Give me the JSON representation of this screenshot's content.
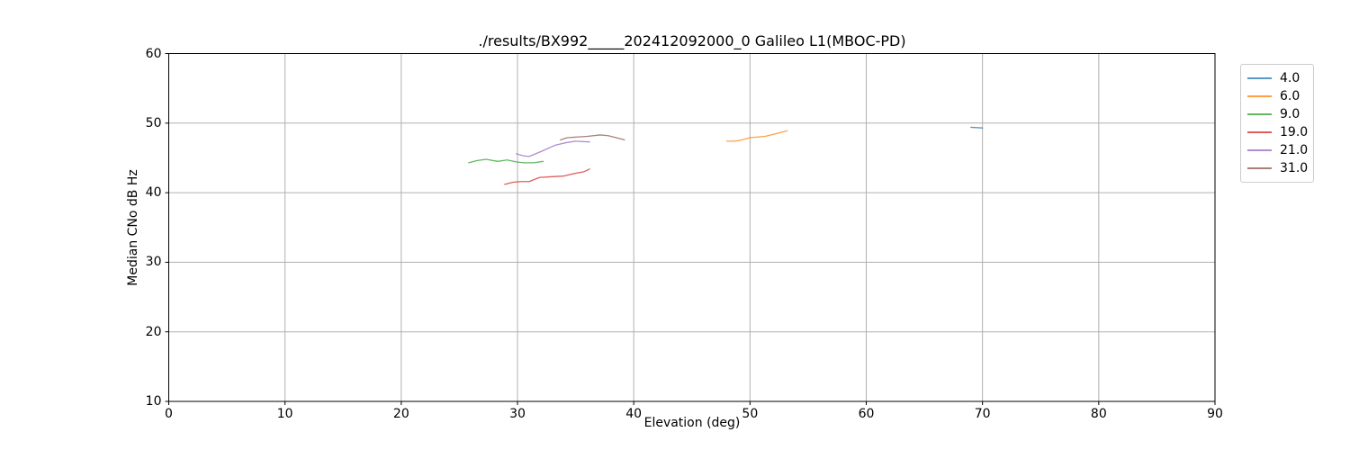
{
  "chart_data": {
    "type": "line",
    "title": "./results/BX992_____202412092000_0 Galileo L1(MBOC-PD)",
    "xlabel": "Elevation (deg)",
    "ylabel": "Median CNo dB Hz",
    "xlim": [
      0,
      90
    ],
    "ylim": [
      10,
      60
    ],
    "xticks": [
      0,
      10,
      20,
      30,
      40,
      50,
      60,
      70,
      80,
      90
    ],
    "yticks": [
      10,
      20,
      30,
      40,
      50,
      60
    ],
    "grid": true,
    "legend_position": "outside-right",
    "series": [
      {
        "name": "4.0",
        "color": "#1f77b4",
        "x": [
          69.0,
          70.0
        ],
        "y": [
          49.4,
          49.3
        ]
      },
      {
        "name": "6.0",
        "color": "#ff7f0e",
        "x": [
          48.0,
          48.6,
          49.1,
          50.0,
          51.3,
          52.3,
          53.2
        ],
        "y": [
          47.4,
          47.4,
          47.5,
          47.9,
          48.1,
          48.5,
          48.9
        ]
      },
      {
        "name": "9.0",
        "color": "#2ca02c",
        "x": [
          25.8,
          26.5,
          27.3,
          28.3,
          29.1,
          30.0,
          30.6,
          31.4,
          32.2
        ],
        "y": [
          44.3,
          44.6,
          44.8,
          44.5,
          44.7,
          44.4,
          44.3,
          44.3,
          44.5
        ]
      },
      {
        "name": "19.0",
        "color": "#d62728",
        "x": [
          28.9,
          29.6,
          30.3,
          31.0,
          31.9,
          33.0,
          34.0,
          35.0,
          35.7,
          36.2
        ],
        "y": [
          41.2,
          41.5,
          41.6,
          41.6,
          42.2,
          42.3,
          42.4,
          42.8,
          43.0,
          43.4
        ]
      },
      {
        "name": "21.0",
        "color": "#9467bd",
        "x": [
          29.9,
          30.5,
          31.0,
          32.0,
          33.2,
          34.2,
          35.0,
          36.2
        ],
        "y": [
          45.6,
          45.3,
          45.2,
          45.9,
          46.8,
          47.2,
          47.4,
          47.3
        ]
      },
      {
        "name": "31.0",
        "color": "#8c564b",
        "x": [
          33.7,
          34.3,
          35.1,
          36.0,
          37.1,
          37.8,
          38.5,
          39.2
        ],
        "y": [
          47.6,
          47.9,
          48.0,
          48.1,
          48.3,
          48.2,
          47.9,
          47.6
        ]
      }
    ]
  },
  "colors": {
    "grid": "#b0b0b0",
    "spine": "#000000",
    "tick": "#000000",
    "legend_border": "#cccccc",
    "background": "#ffffff"
  },
  "style": {
    "line_opacity": 0.75,
    "line_width": 1.3
  }
}
